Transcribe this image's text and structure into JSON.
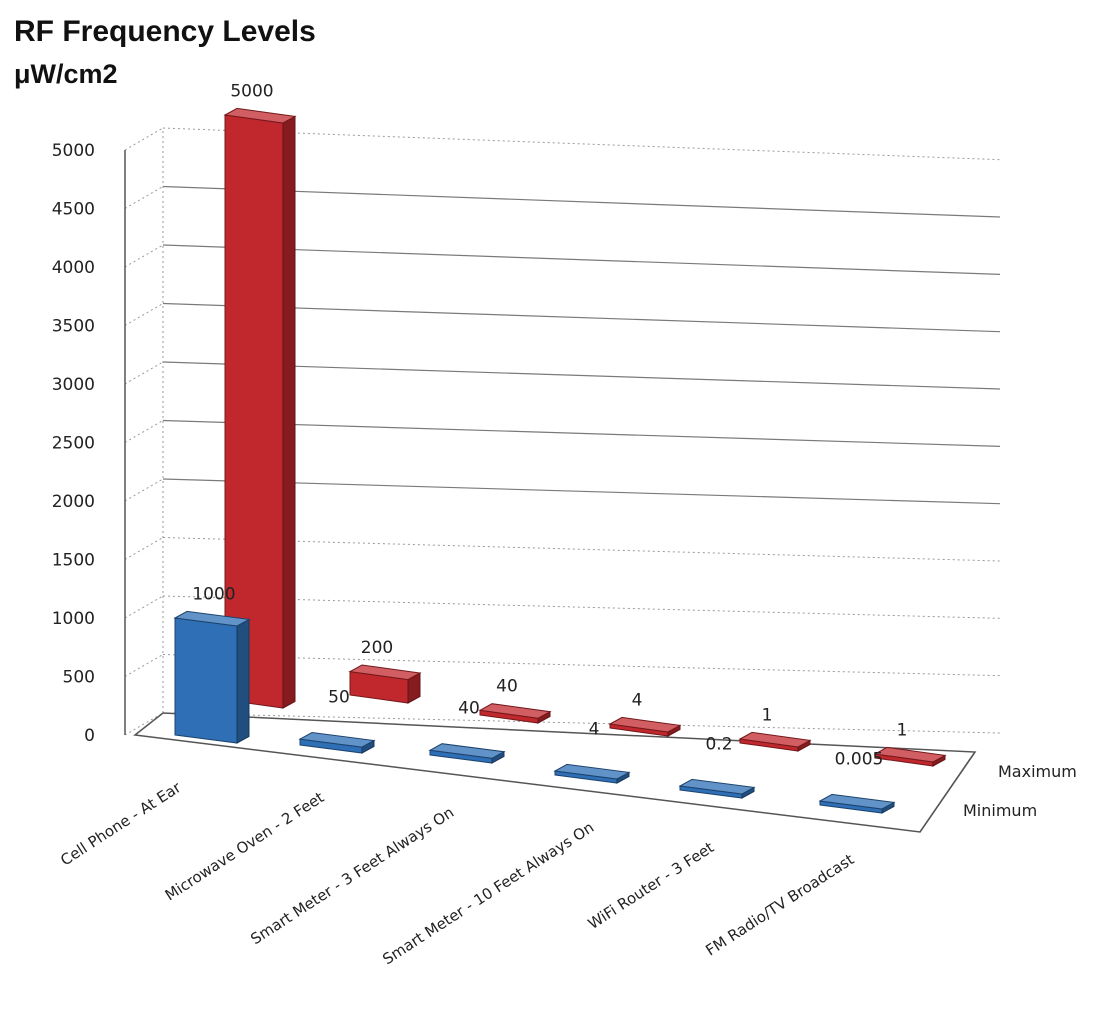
{
  "chart_data": {
    "type": "bar",
    "title": "RF Frequency Levels",
    "subtitle": "μW/cm2",
    "categories": [
      "Cell Phone - At Ear",
      "Microwave Oven - 2 Feet",
      "Smart Meter - 3 Feet Always On",
      "Smart Meter - 10 Feet Always On",
      "WiFi Router - 3 Feet",
      "FM Radio/TV Broadcast"
    ],
    "series": [
      {
        "name": "Minimum",
        "values": [
          1000,
          50,
          40,
          4,
          0.2,
          0.005
        ],
        "labels": [
          "1000",
          "50",
          "40",
          "4",
          "0.2",
          "0.005"
        ],
        "color": "#2e6fb6"
      },
      {
        "name": "Maximum",
        "values": [
          5000,
          200,
          40,
          4,
          1,
          1
        ],
        "labels": [
          "5000",
          "200",
          "40",
          "4",
          "1",
          "1"
        ],
        "color": "#c0282d"
      }
    ],
    "series_axis_labels": [
      "Maximum",
      "Minimum"
    ],
    "yticks": [
      "0",
      "500",
      "1000",
      "1500",
      "2000",
      "2500",
      "3000",
      "3500",
      "4000",
      "4500",
      "5000"
    ],
    "ylim": [
      0,
      5000
    ],
    "xlabel": "",
    "ylabel": "",
    "grid": true,
    "projection": "3d"
  }
}
